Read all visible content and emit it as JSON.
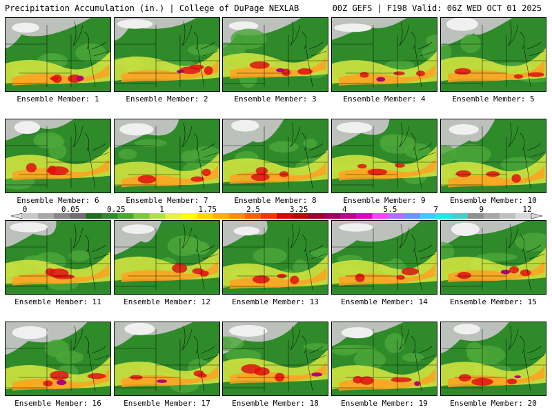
{
  "header": {
    "title": "Precipitation Accumulation (in.) | College of DuPage NEXLAB",
    "run_info": "00Z GEFS | F198 Valid: 06Z WED OCT 01 2025"
  },
  "panels": [
    {
      "label": "Ensemble Member: 1"
    },
    {
      "label": "Ensemble Member: 2"
    },
    {
      "label": "Ensemble Member: 3"
    },
    {
      "label": "Ensemble Member: 4"
    },
    {
      "label": "Ensemble Member: 5"
    },
    {
      "label": "Ensemble Member: 6"
    },
    {
      "label": "Ensemble Member: 7"
    },
    {
      "label": "Ensemble Member: 8"
    },
    {
      "label": "Ensemble Member: 9"
    },
    {
      "label": "Ensemble Member: 10"
    },
    {
      "label": "Ensemble Member: 11"
    },
    {
      "label": "Ensemble Member: 12"
    },
    {
      "label": "Ensemble Member: 13"
    },
    {
      "label": "Ensemble Member: 14"
    },
    {
      "label": "Ensemble Member: 15"
    },
    {
      "label": "Ensemble Member: 16"
    },
    {
      "label": "Ensemble Member: 17"
    },
    {
      "label": "Ensemble Member: 18"
    },
    {
      "label": "Ensemble Member: 19"
    },
    {
      "label": "Ensemble Member: 20"
    }
  ],
  "colorbar": {
    "tick_labels": [
      "0",
      "0.05",
      "0.25",
      "1",
      "1.75",
      "2.5",
      "3.25",
      "4",
      "5.5",
      "7",
      "9",
      "12"
    ],
    "colors": [
      "#c8c8c8",
      "#a8a8a8",
      "#888888",
      "#707070",
      "#1e6e1e",
      "#2e8b2e",
      "#4aa832",
      "#7cc83c",
      "#b4e040",
      "#e8f040",
      "#ffff00",
      "#ffd700",
      "#ffb000",
      "#ff8c00",
      "#ff6000",
      "#ff3000",
      "#e00000",
      "#c00000",
      "#a00028",
      "#a0005a",
      "#c0008c",
      "#e000c0",
      "#ff40ff",
      "#b070ff",
      "#7090ff",
      "#40c8ff",
      "#20e8e8",
      "#40d0c8",
      "#909090",
      "#a8a8a8",
      "#c0c0c0",
      "#d8d8d8"
    ]
  }
}
